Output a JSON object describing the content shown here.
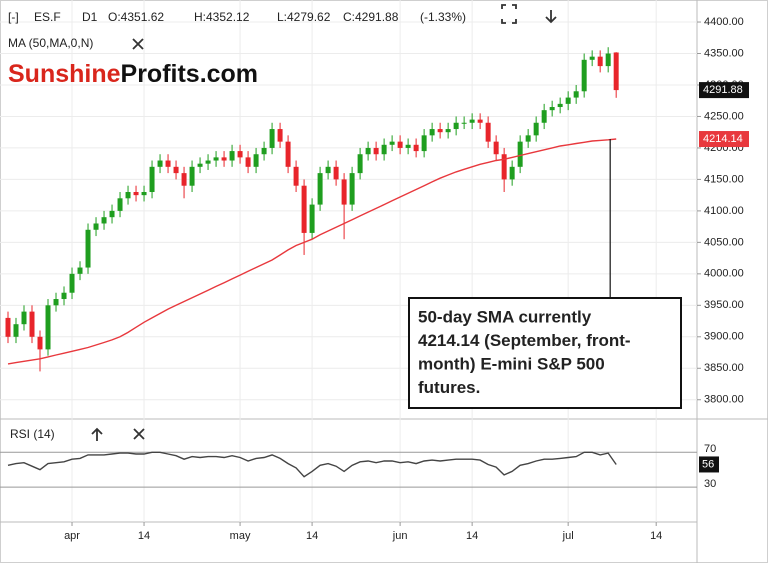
{
  "header": {
    "toggle": "[-]",
    "symbol": "ES.F",
    "timeframe": "D1",
    "open": "O:4351.62",
    "high": "H:4352.12",
    "low": "L:4279.62",
    "close": "C:4291.88",
    "change": "(-1.33%)"
  },
  "logo": {
    "part1": "Sunshine",
    "part2": "Profits.com"
  },
  "chart_data": [
    {
      "type": "candlestick",
      "up_color": "#1f9e1f",
      "down_color": "#e8252b",
      "grid": true,
      "xlim": [
        -1,
        86.1
      ],
      "ylim": [
        3771,
        4435
      ],
      "yticks": [
        {
          "value": 4400,
          "label": "4400.00"
        },
        {
          "value": 4350,
          "label": "4350.00"
        },
        {
          "value": 4300,
          "label": "4300.00"
        },
        {
          "value": 4250,
          "label": "4250.00"
        },
        {
          "value": 4200,
          "label": "4200.00"
        },
        {
          "value": 4150,
          "label": "4150.00"
        },
        {
          "value": 4100,
          "label": "4100.00"
        },
        {
          "value": 4050,
          "label": "4050.00"
        },
        {
          "value": 4000,
          "label": "4000.00"
        },
        {
          "value": 3950,
          "label": "3950.00"
        },
        {
          "value": 3900,
          "label": "3900.00"
        },
        {
          "value": 3850,
          "label": "3850.00"
        },
        {
          "value": 3800,
          "label": "3800.00"
        }
      ],
      "candles": {
        "open": [
          3930,
          3900,
          3920,
          3940,
          3900,
          3880,
          3950,
          3960,
          3970,
          4000,
          4010,
          4070,
          4080,
          4090,
          4100,
          4120,
          4130,
          4125,
          4130,
          4170,
          4180,
          4170,
          4160,
          4140,
          4170,
          4175,
          4180,
          4185,
          4180,
          4195,
          4185,
          4170,
          4190,
          4200,
          4230,
          4210,
          4170,
          4140,
          4065,
          4110,
          4160,
          4170,
          4150,
          4110,
          4160,
          4190,
          4200,
          4190,
          4205,
          4210,
          4200,
          4205,
          4195,
          4220,
          4230,
          4225,
          4230,
          4240,
          4240,
          4245,
          4240,
          4210,
          4190,
          4150,
          4170,
          4210,
          4220,
          4240,
          4260,
          4265,
          4270,
          4280,
          4290,
          4340,
          4345,
          4330,
          4351.62
        ],
        "high": [
          3940,
          3930,
          3950,
          3950,
          3910,
          3960,
          3970,
          3980,
          4010,
          4020,
          4080,
          4090,
          4100,
          4110,
          4130,
          4140,
          4140,
          4140,
          4180,
          4190,
          4190,
          4180,
          4170,
          4180,
          4185,
          4190,
          4195,
          4195,
          4205,
          4205,
          4195,
          4200,
          4210,
          4240,
          4240,
          4220,
          4180,
          4150,
          4120,
          4170,
          4180,
          4180,
          4160,
          4170,
          4200,
          4210,
          4210,
          4215,
          4220,
          4220,
          4215,
          4215,
          4230,
          4240,
          4240,
          4240,
          4250,
          4250,
          4255,
          4255,
          4250,
          4220,
          4200,
          4180,
          4220,
          4230,
          4250,
          4270,
          4275,
          4280,
          4290,
          4300,
          4350,
          4355,
          4355,
          4360,
          4352.12
        ],
        "low": [
          3890,
          3890,
          3910,
          3890,
          3845,
          3870,
          3940,
          3950,
          3960,
          3990,
          4000,
          4060,
          4070,
          4080,
          4090,
          4110,
          4115,
          4115,
          4120,
          4160,
          4160,
          4150,
          4120,
          4130,
          4160,
          4165,
          4170,
          4170,
          4170,
          4175,
          4160,
          4160,
          4180,
          4190,
          4200,
          4160,
          4130,
          4030,
          4055,
          4100,
          4150,
          4140,
          4055,
          4100,
          4150,
          4180,
          4180,
          4180,
          4195,
          4190,
          4190,
          4185,
          4185,
          4210,
          4215,
          4215,
          4220,
          4230,
          4230,
          4230,
          4200,
          4180,
          4130,
          4140,
          4160,
          4200,
          4210,
          4230,
          4250,
          4255,
          4260,
          4270,
          4280,
          4330,
          4320,
          4320,
          4279.62
        ],
        "close": [
          3900,
          3920,
          3940,
          3900,
          3880,
          3950,
          3960,
          3970,
          4000,
          4010,
          4070,
          4080,
          4090,
          4100,
          4120,
          4130,
          4125,
          4130,
          4170,
          4180,
          4170,
          4160,
          4140,
          4170,
          4175,
          4180,
          4185,
          4180,
          4195,
          4185,
          4170,
          4190,
          4200,
          4230,
          4210,
          4170,
          4140,
          4065,
          4110,
          4160,
          4170,
          4150,
          4110,
          4160,
          4190,
          4200,
          4190,
          4205,
          4210,
          4200,
          4205,
          4195,
          4220,
          4230,
          4225,
          4230,
          4240,
          4240,
          4245,
          4240,
          4210,
          4190,
          4150,
          4170,
          4210,
          4220,
          4240,
          4260,
          4265,
          4270,
          4280,
          4290,
          4340,
          4345,
          4330,
          4350,
          4291.88
        ]
      },
      "ma": {
        "name": "MA (50,MA,0,N)",
        "color": "#e8383d",
        "values": [
          3857,
          3859,
          3861,
          3863,
          3865,
          3868,
          3871,
          3874,
          3877,
          3880,
          3883,
          3887,
          3891,
          3895,
          3900,
          3907,
          3915,
          3923,
          3930,
          3937,
          3944,
          3950,
          3956,
          3962,
          3968,
          3974,
          3980,
          3986,
          3992,
          3998,
          4004,
          4010,
          4016,
          4022,
          4030,
          4038,
          4045,
          4050,
          4055,
          4062,
          4068,
          4074,
          4080,
          4086,
          4092,
          4098,
          4104,
          4110,
          4116,
          4122,
          4128,
          4134,
          4140,
          4146,
          4152,
          4157,
          4162,
          4166,
          4170,
          4174,
          4177,
          4180,
          4182,
          4185,
          4188,
          4191,
          4194,
          4197,
          4200,
          4203,
          4205,
          4207,
          4209,
          4211,
          4212,
          4213,
          4214.14
        ]
      },
      "annotation": [
        "50-day SMA currently",
        "4214.14 (September, front-",
        "month) E-mini S&P 500",
        "futures."
      ]
    },
    {
      "type": "line",
      "title": "RSI (14)",
      "color": "#444444",
      "xlim": [
        -1,
        86.1
      ],
      "ylim": [
        -10,
        107
      ],
      "yticks": [
        70,
        30
      ],
      "xticks": [
        {
          "value": 8,
          "label": "apr"
        },
        {
          "value": 17,
          "label": "14"
        },
        {
          "value": 29,
          "label": "may"
        },
        {
          "value": 38,
          "label": "14"
        },
        {
          "value": 49,
          "label": "jun"
        },
        {
          "value": 58,
          "label": "14"
        },
        {
          "value": 70,
          "label": "jul"
        },
        {
          "value": 81,
          "label": "14"
        }
      ],
      "values": [
        55,
        57,
        58,
        54,
        50,
        57,
        58,
        59,
        62,
        63,
        67,
        67,
        67,
        68,
        69,
        69,
        68,
        68,
        70,
        70,
        68,
        66,
        62,
        65,
        64,
        65,
        65,
        64,
        66,
        64,
        60,
        63,
        64,
        67,
        63,
        57,
        52,
        42,
        48,
        55,
        57,
        54,
        48,
        55,
        59,
        60,
        58,
        60,
        60,
        58,
        59,
        57,
        60,
        61,
        60,
        61,
        62,
        62,
        62,
        61,
        56,
        53,
        44,
        48,
        55,
        57,
        60,
        62,
        62,
        63,
        64,
        65,
        70,
        70,
        67,
        69,
        56
      ]
    }
  ]
}
